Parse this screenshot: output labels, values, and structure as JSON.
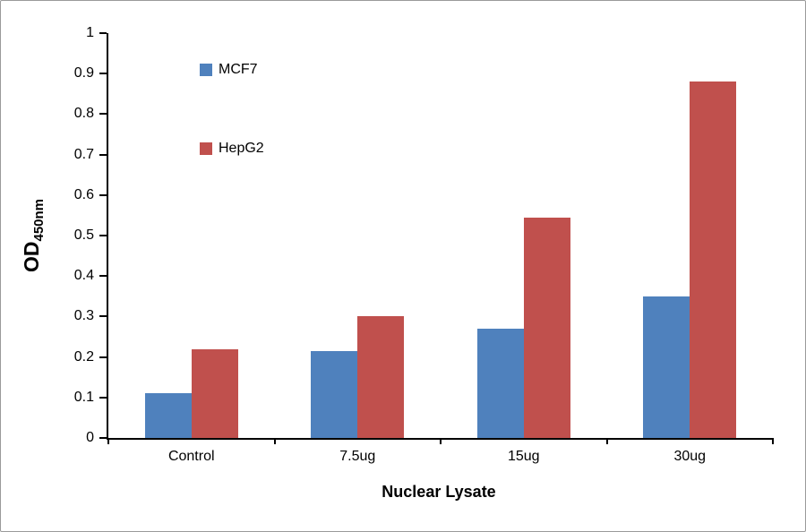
{
  "chart_data": {
    "type": "bar",
    "categories": [
      "Control",
      "7.5ug",
      "15ug",
      "30ug"
    ],
    "series": [
      {
        "name": "MCF7",
        "color": "#4F81BD",
        "values": [
          0.11,
          0.215,
          0.27,
          0.35
        ]
      },
      {
        "name": "HepG2",
        "color": "#C0504D",
        "values": [
          0.22,
          0.3,
          0.545,
          0.88
        ]
      }
    ],
    "title": "",
    "xlabel": "Nuclear Lysate",
    "ylabel_main": "OD",
    "ylabel_sub": "450nm",
    "ylim": [
      0,
      1
    ],
    "yticks": [
      "0",
      "0.1",
      "0.2",
      "0.3",
      "0.4",
      "0.5",
      "0.6",
      "0.7",
      "0.8",
      "0.9",
      "1"
    ],
    "grid": false,
    "legend_position": "inside-upper-left"
  }
}
